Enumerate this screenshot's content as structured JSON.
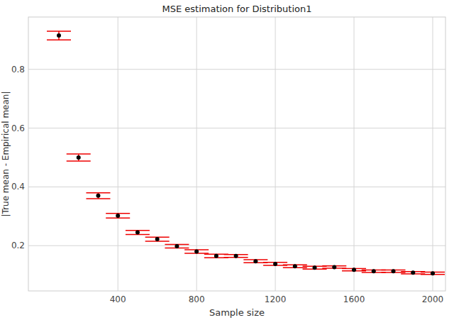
{
  "chart_data": {
    "type": "scatter",
    "title": "MSE estimation for Distribution1",
    "x_label": "Sample size",
    "y_label": "|True mean - Empirical mean|",
    "x": [
      100,
      200,
      300,
      400,
      500,
      600,
      700,
      800,
      900,
      1000,
      1100,
      1200,
      1300,
      1400,
      1500,
      1600,
      1700,
      1800,
      1900,
      2000
    ],
    "values": [
      0.915,
      0.5,
      0.37,
      0.302,
      0.245,
      0.222,
      0.198,
      0.18,
      0.165,
      0.165,
      0.147,
      0.138,
      0.13,
      0.125,
      0.127,
      0.118,
      0.113,
      0.113,
      0.108,
      0.106
    ],
    "errors": [
      0.015,
      0.012,
      0.01,
      0.008,
      0.007,
      0.007,
      0.006,
      0.006,
      0.006,
      0.005,
      0.005,
      0.005,
      0.005,
      0.005,
      0.004,
      0.004,
      0.004,
      0.004,
      0.004,
      0.004
    ],
    "color": "#000000",
    "marker": "circle",
    "xlim": [
      -55,
      2065
    ],
    "ylim": [
      0.046,
      0.978
    ],
    "xticks": [
      400,
      800,
      1200,
      1600,
      2000
    ],
    "yticks": [
      0.2,
      0.4,
      0.6,
      0.8
    ],
    "grid": true
  }
}
